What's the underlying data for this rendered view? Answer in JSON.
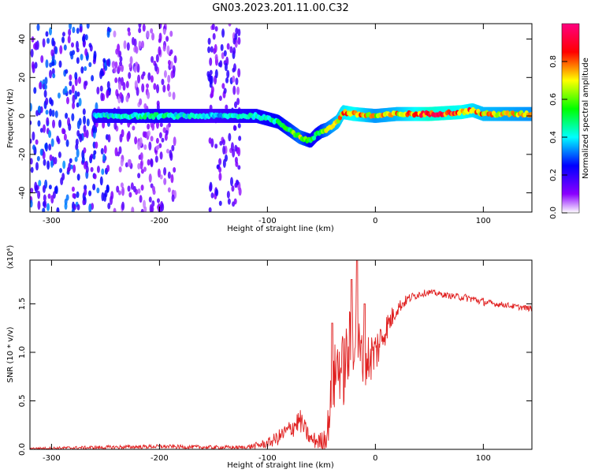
{
  "chart_data": [
    {
      "type": "heatmap",
      "title": "GN03.2023.201.11.00.C32",
      "xlabel": "Height of straight line (km)",
      "ylabel": "Frequency (Hz)",
      "xlim": [
        -320,
        145
      ],
      "ylim": [
        -50,
        48
      ],
      "xticks": [
        -300,
        -200,
        -100,
        0,
        100
      ],
      "yticks": [
        -40,
        -20,
        0,
        20,
        40
      ],
      "colorbar": {
        "label": "Normalized spectral amplitude",
        "range": [
          0,
          1
        ],
        "ticks": [
          0.0,
          0.2,
          0.4,
          0.6,
          0.8
        ],
        "tick_labels": [
          "0.0",
          "0.2",
          "0.4",
          "0.6",
          "0.8"
        ],
        "colormap": [
          "#ffffff",
          "#8a00ff",
          "#0000ff",
          "#00ffff",
          "#00ff00",
          "#ffff00",
          "#ff0000",
          "#ff0080"
        ]
      },
      "ridge": {
        "name": "dominant frequency",
        "x": [
          -260,
          -200,
          -150,
          -110,
          -90,
          -80,
          -70,
          -60,
          -55,
          -50,
          -45,
          -40,
          -35,
          -30,
          -20,
          0,
          20,
          50,
          80,
          90,
          100,
          145
        ],
        "y": [
          0,
          0,
          0,
          0,
          -3,
          -7,
          -11,
          -13,
          -10,
          -8,
          -7,
          -5,
          -3,
          2,
          1,
          0,
          1,
          1,
          2,
          3,
          1,
          1
        ],
        "amplitude": [
          0.45,
          0.5,
          0.4,
          0.5,
          0.55,
          0.6,
          0.7,
          0.55,
          0.5,
          0.6,
          0.7,
          0.75,
          0.8,
          0.85,
          0.9,
          0.75,
          0.8,
          0.95,
          0.9,
          0.85,
          0.8,
          0.75
        ]
      },
      "noise_regions": [
        {
          "x": [
            -320,
            -245
          ],
          "amplitude": 0.3
        },
        {
          "x": [
            -245,
            -185
          ],
          "amplitude": 0.15
        },
        {
          "x": [
            -155,
            -125
          ],
          "amplitude": 0.2
        }
      ]
    },
    {
      "type": "line",
      "xlabel": "Height of straight line (km)",
      "ylabel": "SNR (10 * v/v)",
      "y_multiplier": "(x10⁴)",
      "xlim": [
        -320,
        145
      ],
      "ylim": [
        0,
        1.95
      ],
      "xticks": [
        -300,
        -200,
        -100,
        0,
        100
      ],
      "yticks": [
        0.0,
        0.5,
        1.0,
        1.5
      ],
      "ytick_labels": [
        "0.0",
        "0.5",
        "1.0",
        "1.5"
      ],
      "series": [
        {
          "name": "SNR",
          "color": "#e02020",
          "x": [
            -320,
            -250,
            -200,
            -150,
            -120,
            -100,
            -90,
            -80,
            -75,
            -70,
            -65,
            -60,
            -50,
            -45,
            -40,
            -35,
            -30,
            -25,
            -20,
            -15,
            -10,
            0,
            10,
            20,
            30,
            40,
            50,
            60,
            70,
            80,
            90,
            100,
            110,
            120,
            130,
            145
          ],
          "y": [
            0.01,
            0.02,
            0.03,
            0.02,
            0.02,
            0.06,
            0.12,
            0.2,
            0.25,
            0.3,
            0.2,
            0.1,
            0.08,
            0.15,
            0.6,
            0.9,
            0.8,
            1.0,
            1.2,
            1.0,
            0.9,
            1.0,
            1.25,
            1.45,
            1.55,
            1.6,
            1.62,
            1.6,
            1.58,
            1.57,
            1.55,
            1.52,
            1.5,
            1.49,
            1.47,
            1.45
          ],
          "noise": [
            0.01,
            0.02,
            0.02,
            0.02,
            0.02,
            0.05,
            0.08,
            0.1,
            0.12,
            0.12,
            0.1,
            0.08,
            0.1,
            0.15,
            0.35,
            0.35,
            0.4,
            0.4,
            0.4,
            0.35,
            0.3,
            0.25,
            0.15,
            0.08,
            0.05,
            0.04,
            0.03,
            0.03,
            0.03,
            0.04,
            0.04,
            0.04,
            0.03,
            0.03,
            0.03,
            0.03
          ],
          "spikes": [
            {
              "x": -40,
              "y": 1.3
            },
            {
              "x": -22,
              "y": 1.75
            },
            {
              "x": -17,
              "y": 1.95
            },
            {
              "x": -10,
              "y": 1.5
            }
          ]
        }
      ]
    }
  ]
}
